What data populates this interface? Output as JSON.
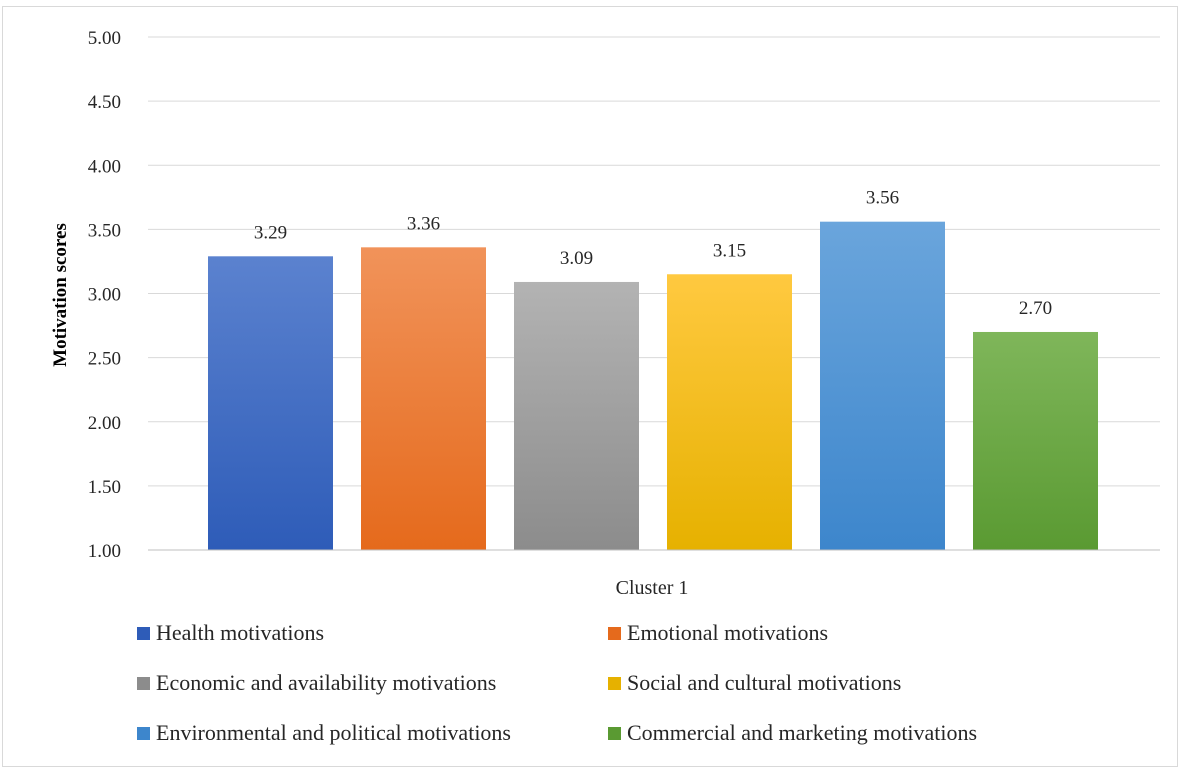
{
  "chart_data": {
    "type": "bar",
    "categories": [
      "Cluster 1"
    ],
    "ylabel": "Motivation scores",
    "ylim": [
      1.0,
      5.0
    ],
    "y_ticks": [
      "1.00",
      "1.50",
      "2.00",
      "2.50",
      "3.00",
      "3.50",
      "4.00",
      "4.50",
      "5.00"
    ],
    "grid": true,
    "legend_position": "bottom",
    "series": [
      {
        "name": "Health motivations",
        "values": [
          3.29
        ],
        "label": "3.29",
        "color_top": "#5b82cf",
        "color_bottom": "#2e5cb8"
      },
      {
        "name": "Emotional motivations",
        "values": [
          3.36
        ],
        "label": "3.36",
        "color_top": "#f1935a",
        "color_bottom": "#e56a1c"
      },
      {
        "name": "Economic and availability motivations",
        "values": [
          3.09
        ],
        "label": "3.09",
        "color_top": "#b3b3b3",
        "color_bottom": "#8c8c8c"
      },
      {
        "name": "Social and cultural motivations",
        "values": [
          3.15
        ],
        "label": "3.15",
        "color_top": "#ffc940",
        "color_bottom": "#e6b100"
      },
      {
        "name": "Environmental and political motivations",
        "values": [
          3.56
        ],
        "label": "3.56",
        "color_top": "#6aa5dc",
        "color_bottom": "#3d86cc"
      },
      {
        "name": "Commercial and marketing motivations",
        "values": [
          2.7
        ],
        "label": "2.70",
        "color_top": "#7fb65a",
        "color_bottom": "#5a9a32"
      }
    ]
  }
}
